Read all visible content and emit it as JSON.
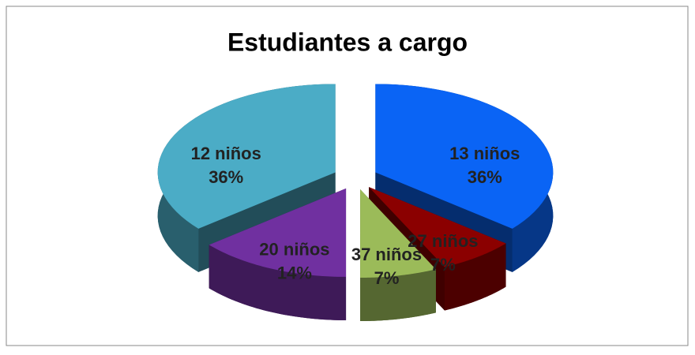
{
  "chart_data": {
    "type": "pie",
    "title": "Estudiantes a cargo",
    "categories": [
      "13  niños",
      "27 niños",
      "37 niños",
      "20 niños",
      "12 niños"
    ],
    "values": [
      36,
      7,
      7,
      14,
      36
    ],
    "value_labels": [
      "36%",
      "7%",
      "7%",
      "14%",
      "36%"
    ],
    "colors": [
      "#0a64f5",
      "#8b0000",
      "#9bbb59",
      "#7030a0",
      "#4bacc6"
    ]
  }
}
